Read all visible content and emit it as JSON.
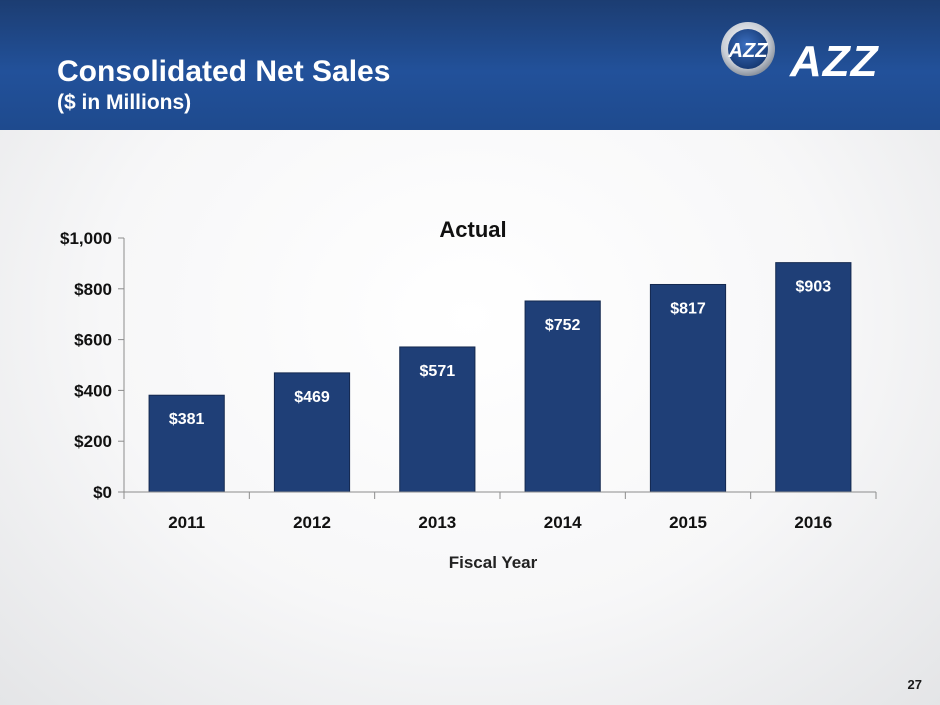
{
  "header": {
    "title": "Consolidated Net Sales",
    "subtitle": "($ in Millions)",
    "logo_text": "AZZ",
    "logo_mark_text": "AZZ"
  },
  "chart_data": {
    "type": "bar",
    "title": "Actual",
    "xlabel": "Fiscal Year",
    "ylabel": "",
    "categories": [
      "2011",
      "2012",
      "2013",
      "2014",
      "2015",
      "2016"
    ],
    "values": [
      381,
      469,
      571,
      752,
      817,
      903
    ],
    "data_labels": [
      "$381",
      "$469",
      "$571",
      "$752",
      "$817",
      "$903"
    ],
    "ylim": [
      0,
      1000
    ],
    "yticks": [
      0,
      200,
      400,
      600,
      800,
      1000
    ],
    "ytick_labels": [
      "$0",
      "$200",
      "$400",
      "$600",
      "$800",
      "$1,000"
    ],
    "grid": false,
    "legend": "none",
    "bar_color": "#1f3f77",
    "bar_edge_color": "#14294f"
  },
  "footer": {
    "page_number": "27"
  }
}
